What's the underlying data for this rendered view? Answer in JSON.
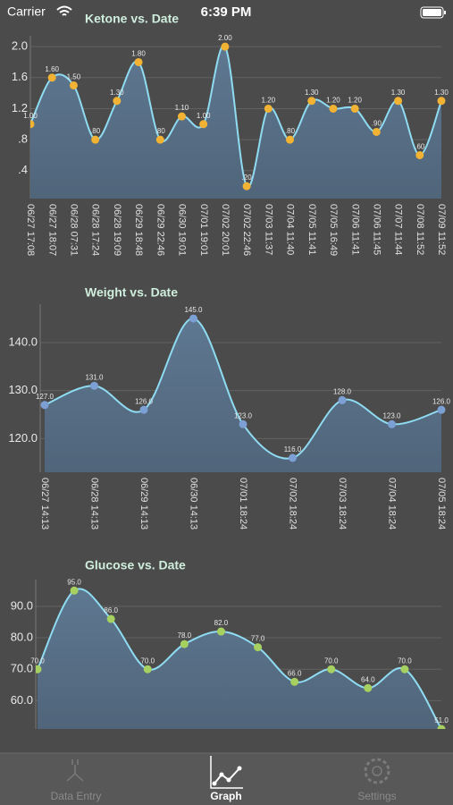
{
  "status_bar": {
    "carrier": "Carrier",
    "time": "6:39 PM"
  },
  "tab_bar": [
    "Data Entry",
    "Graph",
    "Settings"
  ],
  "chart_data": [
    {
      "type": "line",
      "title": "Ketone vs. Date",
      "categories": [
        "06/27 17:08",
        "06/27 18:07",
        "06/28 07:31",
        "06/28 17:24",
        "06/28 19:09",
        "06/29 18:48",
        "06/29 22:46",
        "06/30 19:01",
        "07/01 19:01",
        "07/02 20:01",
        "07/02 22:46",
        "07/03 11:37",
        "07/04 11:40",
        "07/05 11:41",
        "07/05 16:49",
        "07/06 11:41",
        "07/06 11:45",
        "07/07 11:44",
        "07/08 11:52",
        "07/09 11:52"
      ],
      "series": [
        {
          "name": "Ketone",
          "color": "#f2b233",
          "line_color": "#8fdcf2",
          "values": [
            1.0,
            1.6,
            1.5,
            0.8,
            1.3,
            1.8,
            0.8,
            1.1,
            1.0,
            2.0,
            0.2,
            1.2,
            0.8,
            1.3,
            1.2,
            1.2,
            0.9,
            1.3,
            0.6,
            1.3
          ],
          "value_labels": [
            "1.00",
            "1.60",
            "1.50",
            ".80",
            "1.30",
            "1.80",
            ".80",
            "1.10",
            "1.00",
            "2.00",
            ".20",
            "1.20",
            ".80",
            "1.30",
            "1.20",
            "1.20",
            ".90",
            "1.30",
            ".60",
            "1.30"
          ]
        }
      ],
      "ylim": [
        0.04,
        2.14
      ],
      "yticks": [
        {
          "value": 0.4,
          "label": ".4"
        },
        {
          "value": 0.8,
          "label": ".8"
        },
        {
          "value": 1.2,
          "label": "1.2"
        },
        {
          "value": 1.6,
          "label": "1.6"
        },
        {
          "value": 2.0,
          "label": "2.0"
        }
      ],
      "grid": true
    },
    {
      "type": "line",
      "title": "Weight vs. Date",
      "categories": [
        "06/27 14:13",
        "06/28 14:13",
        "06/29 14:13",
        "06/30 14:13",
        "07/01 18:24",
        "07/02 18:24",
        "07/03 18:24",
        "07/04 18:24",
        "07/05 18:24"
      ],
      "series": [
        {
          "name": "Weight",
          "color": "#7c9fd4",
          "line_color": "#8fdcf2",
          "values": [
            127,
            131,
            126,
            145,
            123,
            116,
            128,
            123,
            126
          ],
          "value_labels": [
            "127.0",
            "131.0",
            "126.0",
            "145.0",
            "123.0",
            "116.0",
            "128.0",
            "123.0",
            "126.0"
          ]
        }
      ],
      "ylim": [
        113,
        148
      ],
      "yticks": [
        {
          "value": 120,
          "label": "120.0"
        },
        {
          "value": 130,
          "label": "130.0"
        },
        {
          "value": 140,
          "label": "140.0"
        }
      ],
      "grid": true
    },
    {
      "type": "line",
      "title": "Glucose vs. Date",
      "series": [
        {
          "name": "Glucose",
          "color": "#a6d160",
          "line_color": "#8fdcf2",
          "values": [
            70,
            95,
            86,
            70,
            78,
            82,
            77,
            66,
            70,
            64,
            70,
            51
          ],
          "value_labels": [
            "70.0",
            "95.0",
            "86.0",
            "70.0",
            "78.0",
            "82.0",
            "77.0",
            "66.0",
            "70.0",
            "64.0",
            "70.0",
            "51.0"
          ]
        }
      ],
      "ylim": [
        51,
        98.5
      ],
      "yticks": [
        {
          "value": 60,
          "label": "60.0"
        },
        {
          "value": 70,
          "label": "70.0"
        },
        {
          "value": 80,
          "label": "80.0"
        },
        {
          "value": 90,
          "label": "90.0"
        }
      ],
      "grid": true
    }
  ]
}
